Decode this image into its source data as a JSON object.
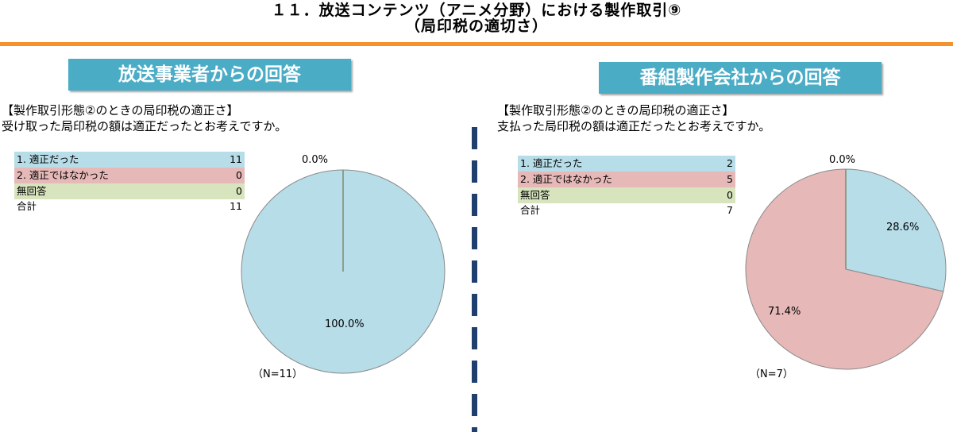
{
  "title": {
    "line1": "１１．放送コンテンツ（アニメ分野）における製作取引⑨",
    "line2": "（局印税の適切さ）"
  },
  "colors": {
    "banner": "#4bacc6",
    "accent_rule": "#f4922e",
    "divider": "#1f3f6e",
    "cat1": "#b7dde8",
    "cat2": "#e6b9b8",
    "cat3": "#d7e4bd"
  },
  "left": {
    "banner": "放送事業者からの回答",
    "question_heading": "【製作取引形態②のときの局印税の適正さ】",
    "question": "受け取った局印税の額は適正だったとお考えですか。",
    "rows": [
      {
        "label": "1. 適正だった",
        "value": "11"
      },
      {
        "label": "2. 適正ではなかった",
        "value": "0"
      },
      {
        "label": "無回答",
        "value": "0"
      }
    ],
    "total": {
      "label": "合計",
      "value": "11"
    },
    "n_label": "（N=11）",
    "pct_top": "0.0%",
    "pct_main": "100.0%"
  },
  "right": {
    "banner": "番組製作会社からの回答",
    "question_heading": "【製作取引形態②のときの局印税の適正さ】",
    "question": "支払った局印税の額は適正だったとお考えですか。",
    "rows": [
      {
        "label": "1. 適正だった",
        "value": "2"
      },
      {
        "label": "2. 適正ではなかった",
        "value": "5"
      },
      {
        "label": "無回答",
        "value": "0"
      }
    ],
    "total": {
      "label": "合計",
      "value": "7"
    },
    "n_label": "（N=7）",
    "pct_top": "0.0%",
    "pct_a": "28.6%",
    "pct_b": "71.4%"
  },
  "chart_data": [
    {
      "type": "pie",
      "title": "放送事業者からの回答",
      "categories": [
        "1. 適正だった",
        "2. 適正ではなかった",
        "無回答"
      ],
      "values": [
        11,
        0,
        0
      ],
      "percent_labels": [
        "100.0%",
        "0.0%",
        "0.0%"
      ],
      "colors": [
        "#b7dde8",
        "#e6b9b8",
        "#d7e4bd"
      ]
    },
    {
      "type": "pie",
      "title": "番組製作会社からの回答",
      "categories": [
        "1. 適正だった",
        "2. 適正ではなかった",
        "無回答"
      ],
      "values": [
        2,
        5,
        0
      ],
      "percent_labels": [
        "28.6%",
        "71.4%",
        "0.0%"
      ],
      "colors": [
        "#b7dde8",
        "#e6b9b8",
        "#d7e4bd"
      ]
    }
  ]
}
